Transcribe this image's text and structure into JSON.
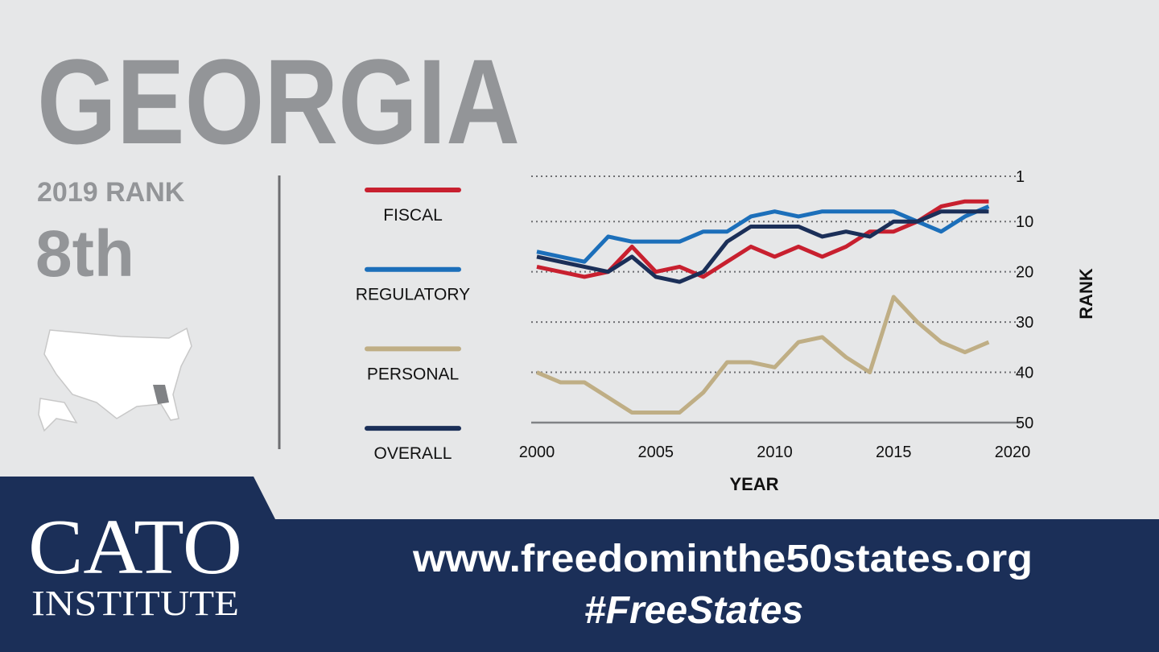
{
  "header": {
    "title": "GEORGIA",
    "rank_label": "2019 RANK",
    "rank": "8th"
  },
  "chart_data": {
    "type": "line",
    "x": [
      2000,
      2001,
      2002,
      2003,
      2004,
      2005,
      2006,
      2007,
      2008,
      2009,
      2010,
      2011,
      2012,
      2013,
      2014,
      2015,
      2016,
      2017,
      2018,
      2019
    ],
    "series": [
      {
        "name": "FISCAL",
        "color": "#c8202f",
        "values": [
          19,
          20,
          21,
          20,
          15,
          20,
          19,
          21,
          18,
          15,
          17,
          15,
          17,
          15,
          12,
          12,
          10,
          7,
          6,
          6
        ]
      },
      {
        "name": "REGULATORY",
        "color": "#1c6fba",
        "values": [
          16,
          17,
          18,
          13,
          14,
          14,
          14,
          12,
          12,
          9,
          8,
          9,
          8,
          8,
          8,
          8,
          10,
          12,
          9,
          7
        ]
      },
      {
        "name": "PERSONAL",
        "color": "#bfae85",
        "values": [
          40,
          42,
          42,
          45,
          48,
          48,
          48,
          44,
          38,
          38,
          39,
          34,
          33,
          37,
          40,
          25,
          30,
          34,
          36,
          34
        ]
      },
      {
        "name": "OVERALL",
        "color": "#1b2f58",
        "values": [
          17,
          18,
          19,
          20,
          17,
          21,
          22,
          20,
          14,
          11,
          11,
          11,
          13,
          12,
          13,
          10,
          10,
          8,
          8,
          8
        ]
      }
    ],
    "xlim": [
      2000,
      2020
    ],
    "xticks": [
      2000,
      2005,
      2010,
      2015,
      2020
    ],
    "ylim": [
      50,
      1
    ],
    "yticks": [
      1,
      10,
      20,
      30,
      40,
      50
    ],
    "x_label": "YEAR",
    "y_label": "RANK",
    "grid": true
  },
  "footer": {
    "logo_main": "CATO",
    "logo_sub": "INSTITUTE",
    "url": "www.freedominthe50states.org",
    "hashtag": "#FreeStates"
  }
}
